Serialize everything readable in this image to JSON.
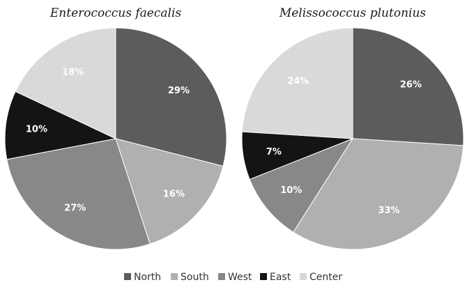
{
  "legend": [
    {
      "label": "North",
      "color": "#5c5c5c"
    },
    {
      "label": "South",
      "color": "#b0b0b0"
    },
    {
      "label": "West",
      "color": "#888888"
    },
    {
      "label": "East",
      "color": "#141414"
    },
    {
      "label": "Center",
      "color": "#d9d9d9"
    }
  ],
  "chart_data": [
    {
      "type": "pie",
      "title": "Enterococcus faecalis",
      "slices": [
        {
          "label": "North",
          "value": 29,
          "text": "29%"
        },
        {
          "label": "South",
          "value": 16,
          "text": "16%"
        },
        {
          "label": "West",
          "value": 27,
          "text": "27%"
        },
        {
          "label": "East",
          "value": 10,
          "text": "10%"
        },
        {
          "label": "Center",
          "value": 18,
          "text": "18%"
        }
      ]
    },
    {
      "type": "pie",
      "title": "Melissococcus plutonius",
      "slices": [
        {
          "label": "North",
          "value": 26,
          "text": "26%"
        },
        {
          "label": "South",
          "value": 33,
          "text": "33%"
        },
        {
          "label": "West",
          "value": 10,
          "text": "10%"
        },
        {
          "label": "East",
          "value": 7,
          "text": "7%"
        },
        {
          "label": "Center",
          "value": 24,
          "text": "24%"
        }
      ]
    }
  ]
}
